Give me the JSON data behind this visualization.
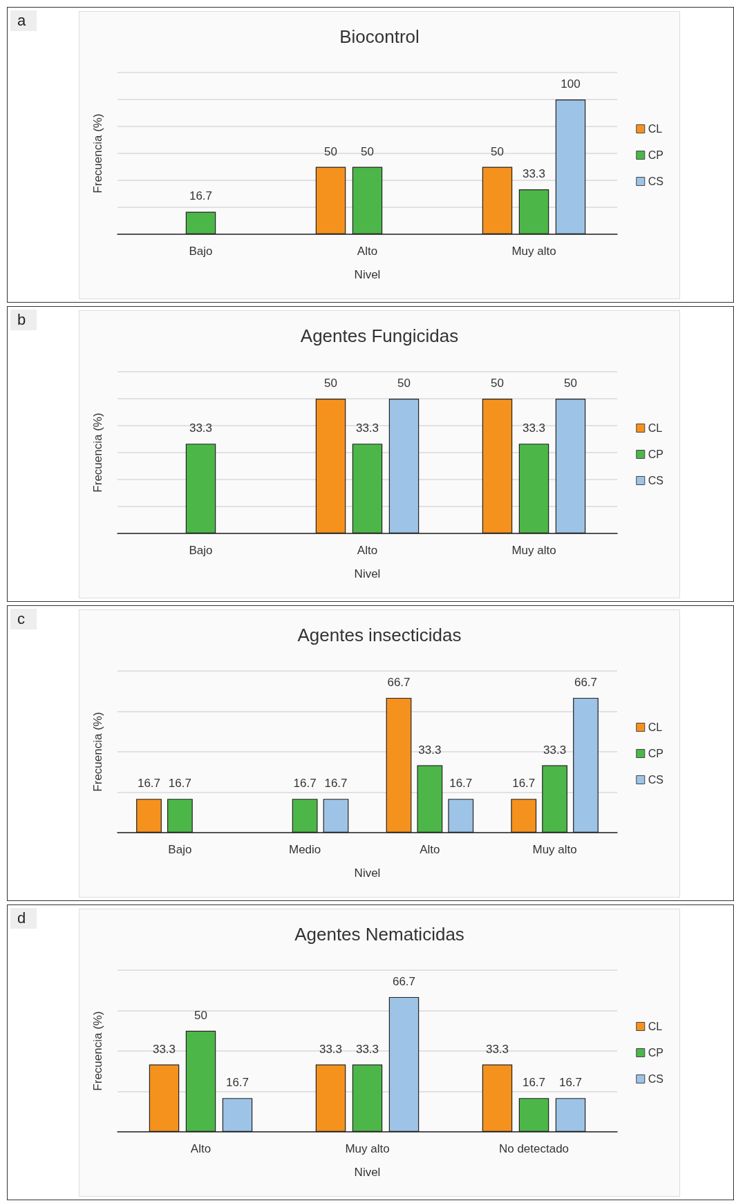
{
  "chart_data": [
    {
      "type": "bar",
      "title": "Biocontrol",
      "xlabel": "Nivel",
      "ylabel": "Frecuencia (%)",
      "annotations": [
        "a"
      ],
      "categories": [
        "Bajo",
        "Alto",
        "Muy alto"
      ],
      "series": [
        {
          "name": "CL",
          "color": "#f5921e",
          "values": [
            null,
            50,
            50
          ]
        },
        {
          "name": "CP",
          "color": "#4cb748",
          "values": [
            16.7,
            50,
            33.3
          ]
        },
        {
          "name": "CS",
          "color": "#9dc3e6",
          "values": [
            null,
            null,
            100
          ]
        }
      ],
      "ylim": [
        0,
        120
      ],
      "tick_labels": "x",
      "grid": "y",
      "legend": "right",
      "data_labels": true
    },
    {
      "type": "bar",
      "title": "Agentes Fungicidas",
      "xlabel": "Nivel",
      "ylabel": "Frecuencia (%)",
      "annotations": [
        "b"
      ],
      "categories": [
        "Bajo",
        "Alto",
        "Muy alto"
      ],
      "series": [
        {
          "name": "CL",
          "color": "#f5921e",
          "values": [
            null,
            50,
            50
          ]
        },
        {
          "name": "CP",
          "color": "#4cb748",
          "values": [
            33.3,
            33.3,
            33.3
          ]
        },
        {
          "name": "CS",
          "color": "#9dc3e6",
          "values": [
            null,
            50,
            50
          ]
        }
      ],
      "ylim": [
        0,
        60
      ],
      "tick_labels": "x",
      "grid": "y",
      "legend": "right",
      "data_labels": true
    },
    {
      "type": "bar",
      "title": "Agentes insecticidas",
      "xlabel": "Nivel",
      "ylabel": "Frecuencia (%)",
      "annotations": [
        "c"
      ],
      "categories": [
        "Bajo",
        "Medio",
        "Alto",
        "Muy alto"
      ],
      "series": [
        {
          "name": "CL",
          "color": "#f5921e",
          "values": [
            16.7,
            null,
            66.7,
            16.7
          ]
        },
        {
          "name": "CP",
          "color": "#4cb748",
          "values": [
            16.7,
            16.7,
            33.3,
            33.3
          ]
        },
        {
          "name": "CS",
          "color": "#9dc3e6",
          "values": [
            null,
            16.7,
            16.7,
            66.7
          ]
        }
      ],
      "ylim": [
        0,
        80
      ],
      "tick_labels": "x",
      "grid": "y",
      "legend": "right",
      "data_labels": true
    },
    {
      "type": "bar",
      "title": "Agentes Nematicidas",
      "xlabel": "Nivel",
      "ylabel": "Frecuencia (%)",
      "annotations": [
        "d"
      ],
      "categories": [
        "Alto",
        "Muy alto",
        "No detectado"
      ],
      "series": [
        {
          "name": "CL",
          "color": "#f5921e",
          "values": [
            33.3,
            33.3,
            33.3
          ]
        },
        {
          "name": "CP",
          "color": "#4cb748",
          "values": [
            50,
            33.3,
            16.7
          ]
        },
        {
          "name": "CS",
          "color": "#9dc3e6",
          "values": [
            16.7,
            66.7,
            16.7
          ]
        }
      ],
      "ylim": [
        0,
        80
      ],
      "tick_labels": "x",
      "grid": "y",
      "legend": "right",
      "data_labels": true
    }
  ]
}
